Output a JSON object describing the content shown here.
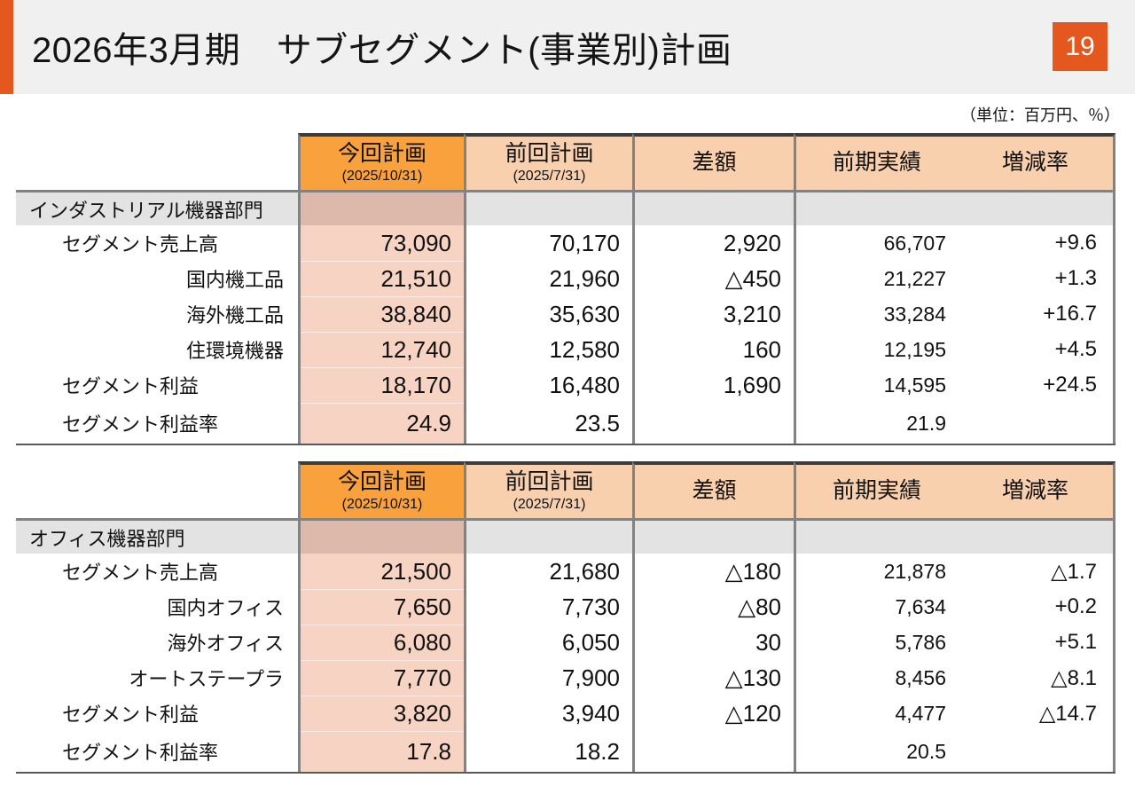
{
  "page": {
    "title": "2026年3月期　サブセグメント(事業別)計画",
    "page_number": "19",
    "unit_note": "（単位：百万円、％）"
  },
  "colors": {
    "accent_orange": "#E4571F",
    "header_orange": "#F9A13C",
    "header_peach": "#F9D0AD",
    "today_column_bg": "#F7D3C3",
    "today_column_section_bg": "#DDB9AC",
    "section_row_bg": "#E3E3E3",
    "grid_line": "#828282",
    "title_band_bg": "#F0F0F1"
  },
  "columns": [
    {
      "label": "今回計画",
      "date": "(2025/10/31)"
    },
    {
      "label": "前回計画",
      "date": "(2025/7/31)"
    },
    {
      "label": "差額",
      "date": ""
    },
    {
      "label": "前期実績",
      "date": ""
    },
    {
      "label": "増減率",
      "date": ""
    }
  ],
  "tables": [
    {
      "section": "インダストリアル機器部門",
      "rows": [
        {
          "label": "セグメント売上高",
          "indent": "main",
          "values": [
            "73,090",
            "70,170",
            "2,920",
            "66,707",
            "+9.6"
          ]
        },
        {
          "label": "国内機工品",
          "indent": "sub",
          "values": [
            "21,510",
            "21,960",
            "△450",
            "21,227",
            "+1.3"
          ]
        },
        {
          "label": "海外機工品",
          "indent": "sub",
          "values": [
            "38,840",
            "35,630",
            "3,210",
            "33,284",
            "+16.7"
          ]
        },
        {
          "label": "住環境機器",
          "indent": "sub",
          "values": [
            "12,740",
            "12,580",
            "160",
            "12,195",
            "+4.5"
          ]
        },
        {
          "label": "セグメント利益",
          "indent": "main",
          "values": [
            "18,170",
            "16,480",
            "1,690",
            "14,595",
            "+24.5"
          ]
        },
        {
          "label": "セグメント利益率",
          "indent": "main",
          "values": [
            "24.9",
            "23.5",
            "",
            "21.9",
            ""
          ]
        }
      ]
    },
    {
      "section": "オフィス機器部門",
      "rows": [
        {
          "label": "セグメント売上高",
          "indent": "main",
          "values": [
            "21,500",
            "21,680",
            "△180",
            "21,878",
            "△1.7"
          ]
        },
        {
          "label": "国内オフィス",
          "indent": "sub",
          "values": [
            "7,650",
            "7,730",
            "△80",
            "7,634",
            "+0.2"
          ]
        },
        {
          "label": "海外オフィス",
          "indent": "sub",
          "values": [
            "6,080",
            "6,050",
            "30",
            "5,786",
            "+5.1"
          ]
        },
        {
          "label": "オートステープラ",
          "indent": "sub",
          "values": [
            "7,770",
            "7,900",
            "△130",
            "8,456",
            "△8.1"
          ]
        },
        {
          "label": "セグメント利益",
          "indent": "main",
          "values": [
            "3,820",
            "3,940",
            "△120",
            "4,477",
            "△14.7"
          ]
        },
        {
          "label": "セグメント利益率",
          "indent": "main",
          "values": [
            "17.8",
            "18.2",
            "",
            "20.5",
            ""
          ]
        }
      ]
    }
  ]
}
